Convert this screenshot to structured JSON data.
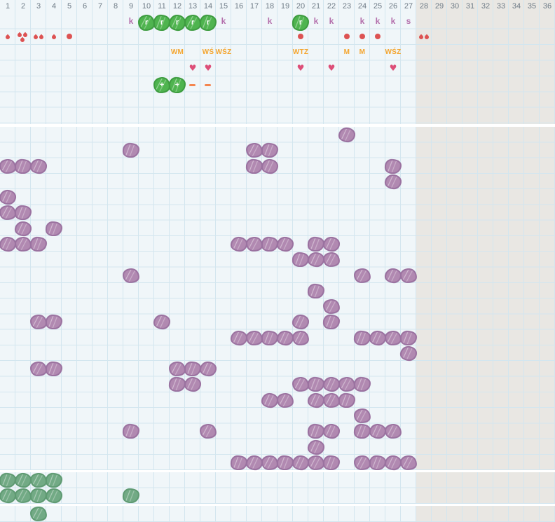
{
  "columns": [
    "1",
    "2",
    "3",
    "4",
    "5",
    "6",
    "7",
    "8",
    "9",
    "10",
    "11",
    "12",
    "13",
    "14",
    "15",
    "16",
    "17",
    "18",
    "19",
    "20",
    "21",
    "22",
    "23",
    "24",
    "25",
    "26",
    "27",
    "28",
    "29",
    "30",
    "31",
    "32",
    "33",
    "34",
    "35",
    "36"
  ],
  "shaded_from_column": 28,
  "icons": {
    "heart_glyph": "♥"
  },
  "colors": {
    "background": "#ffffff",
    "grid_background": "#f0f6f9",
    "shaded_background": "#e9e7e3",
    "grid_line": "#d3e6ef",
    "header_number": "#6e7b86",
    "purple_blob": "#b189b1",
    "purple_blob_outline": "#9b72a0",
    "green_blob": "#4fb44f",
    "green_blob_outline": "#3e9c40",
    "sage_blob": "#72aa85",
    "sage_blob_outline": "#5f9a72",
    "plum_letter": "#b470ac",
    "red_marker": "#dd5252",
    "orange_label": "#f4a52e",
    "heart": "#dd4e78",
    "dash": "#f4854e"
  },
  "top_section": {
    "items": [
      {
        "row": 1,
        "col": 9,
        "kind": "letter",
        "text": "k"
      },
      {
        "row": 1,
        "col": 10,
        "kind": "green-blob",
        "text": "r"
      },
      {
        "row": 1,
        "col": 11,
        "kind": "green-blob",
        "text": "r"
      },
      {
        "row": 1,
        "col": 12,
        "kind": "green-blob",
        "text": "r"
      },
      {
        "row": 1,
        "col": 13,
        "kind": "green-blob",
        "text": "r"
      },
      {
        "row": 1,
        "col": 14,
        "kind": "green-blob",
        "text": "r"
      },
      {
        "row": 1,
        "col": 15,
        "kind": "letter",
        "text": "k"
      },
      {
        "row": 1,
        "col": 18,
        "kind": "letter",
        "text": "k"
      },
      {
        "row": 1,
        "col": 20,
        "kind": "green-blob",
        "text": "r"
      },
      {
        "row": 1,
        "col": 21,
        "kind": "letter",
        "text": "k"
      },
      {
        "row": 1,
        "col": 22,
        "kind": "letter",
        "text": "k"
      },
      {
        "row": 1,
        "col": 24,
        "kind": "letter",
        "text": "k"
      },
      {
        "row": 1,
        "col": 25,
        "kind": "letter",
        "text": "k"
      },
      {
        "row": 1,
        "col": 26,
        "kind": "letter",
        "text": "k"
      },
      {
        "row": 1,
        "col": 27,
        "kind": "letter",
        "text": "s"
      },
      {
        "row": 2,
        "col": 1,
        "kind": "drops",
        "count": 1
      },
      {
        "row": 2,
        "col": 2,
        "kind": "drops",
        "count": 3
      },
      {
        "row": 2,
        "col": 3,
        "kind": "drops",
        "count": 2
      },
      {
        "row": 2,
        "col": 4,
        "kind": "drops",
        "count": 1
      },
      {
        "row": 2,
        "col": 5,
        "kind": "dot"
      },
      {
        "row": 2,
        "col": 20,
        "kind": "dot"
      },
      {
        "row": 2,
        "col": 23,
        "kind": "dot"
      },
      {
        "row": 2,
        "col": 24,
        "kind": "dot"
      },
      {
        "row": 2,
        "col": 25,
        "kind": "dot"
      },
      {
        "row": 2,
        "col": 28,
        "kind": "drops",
        "count": 2
      },
      {
        "row": 3,
        "col": 12,
        "kind": "label",
        "text": "WM"
      },
      {
        "row": 3,
        "col": 14,
        "kind": "label",
        "text": "WŚ"
      },
      {
        "row": 3,
        "col": 15,
        "kind": "label",
        "text": "WŚZ"
      },
      {
        "row": 3,
        "col": 20,
        "kind": "label",
        "text": "WTZ"
      },
      {
        "row": 3,
        "col": 23,
        "kind": "label",
        "text": "M"
      },
      {
        "row": 3,
        "col": 24,
        "kind": "label",
        "text": "M"
      },
      {
        "row": 3,
        "col": 26,
        "kind": "label",
        "text": "WŚZ"
      },
      {
        "row": 4,
        "col": 13,
        "kind": "heart"
      },
      {
        "row": 4,
        "col": 14,
        "kind": "heart"
      },
      {
        "row": 4,
        "col": 20,
        "kind": "heart"
      },
      {
        "row": 4,
        "col": 22,
        "kind": "heart"
      },
      {
        "row": 4,
        "col": 26,
        "kind": "heart"
      },
      {
        "row": 5,
        "col": 11,
        "kind": "green-flower",
        "text": "+"
      },
      {
        "row": 5,
        "col": 12,
        "kind": "green-flower",
        "text": "+"
      },
      {
        "row": 5,
        "col": 13,
        "kind": "dash"
      },
      {
        "row": 5,
        "col": 14,
        "kind": "dash"
      }
    ]
  },
  "main_section": {
    "rows": 22,
    "blobs": [
      {
        "row": 1,
        "cols": [
          23
        ]
      },
      {
        "row": 2,
        "cols": [
          9,
          17,
          18
        ]
      },
      {
        "row": 3,
        "cols": [
          1,
          2,
          3,
          17,
          18,
          26
        ]
      },
      {
        "row": 4,
        "cols": [
          26
        ]
      },
      {
        "row": 5,
        "cols": [
          1
        ]
      },
      {
        "row": 6,
        "cols": [
          1,
          2
        ]
      },
      {
        "row": 7,
        "cols": [
          2,
          4
        ]
      },
      {
        "row": 8,
        "cols": [
          1,
          2,
          3,
          16,
          17,
          18,
          19,
          21,
          22
        ]
      },
      {
        "row": 9,
        "cols": [
          20,
          21,
          22
        ]
      },
      {
        "row": 10,
        "cols": [
          9,
          24,
          26,
          27
        ]
      },
      {
        "row": 11,
        "cols": [
          21
        ]
      },
      {
        "row": 12,
        "cols": [
          22
        ]
      },
      {
        "row": 13,
        "cols": [
          3,
          4,
          11,
          20,
          22
        ]
      },
      {
        "row": 14,
        "cols": [
          16,
          17,
          18,
          19,
          20,
          24,
          25,
          26,
          27
        ]
      },
      {
        "row": 15,
        "cols": [
          27
        ]
      },
      {
        "row": 16,
        "cols": [
          3,
          4,
          12,
          13,
          14
        ]
      },
      {
        "row": 17,
        "cols": [
          12,
          13,
          20,
          21,
          22,
          23,
          24
        ]
      },
      {
        "row": 18,
        "cols": [
          18,
          19,
          21,
          22,
          23
        ]
      },
      {
        "row": 19,
        "cols": [
          24
        ]
      },
      {
        "row": 20,
        "cols": [
          9,
          14,
          21,
          22,
          24,
          25,
          26
        ]
      },
      {
        "row": 21,
        "cols": [
          21
        ]
      },
      {
        "row": 22,
        "cols": [
          16,
          17,
          18,
          19,
          20,
          21,
          22,
          24,
          25,
          26,
          27
        ]
      }
    ]
  },
  "green_section": {
    "rows": 2,
    "blobs": [
      {
        "row": 1,
        "cols": [
          1,
          2,
          3,
          4
        ]
      },
      {
        "row": 2,
        "cols": [
          1,
          2,
          3,
          4,
          9
        ]
      }
    ]
  },
  "footer_section": {
    "rows": 1,
    "blobs": [
      {
        "row": 1,
        "cols": [
          3
        ]
      }
    ]
  }
}
